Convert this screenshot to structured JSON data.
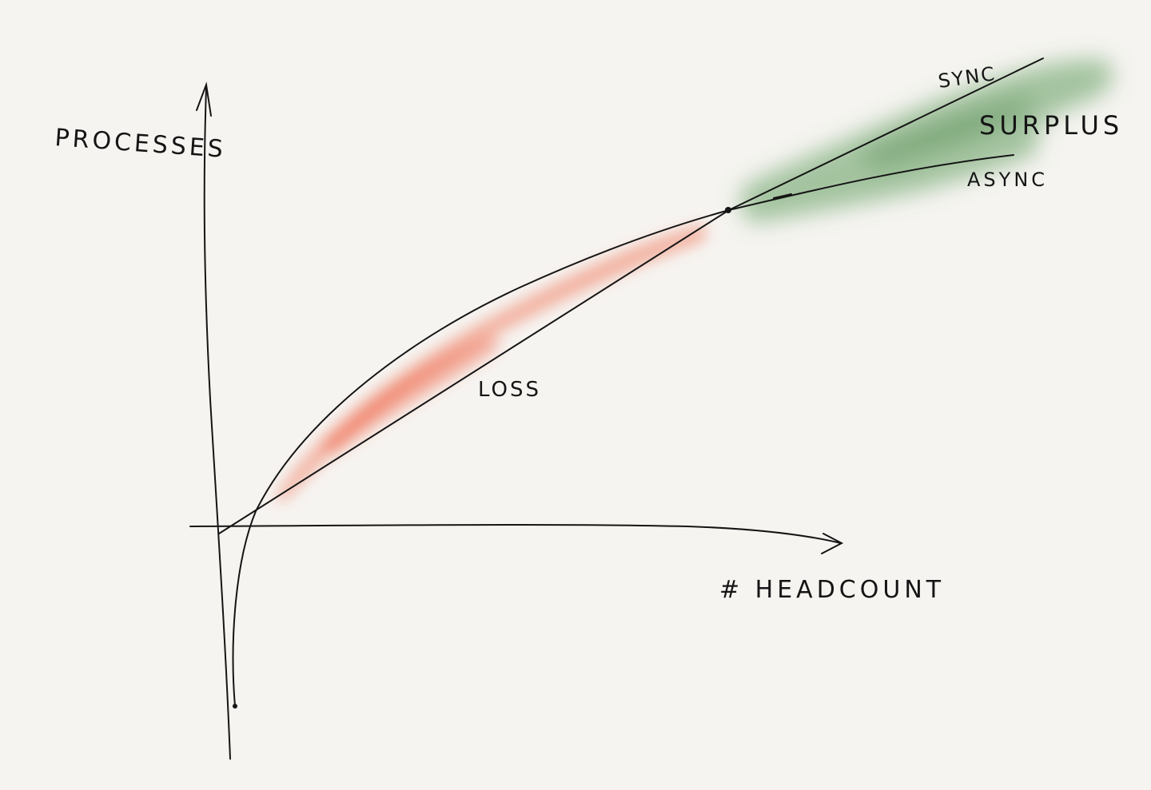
{
  "diagram": {
    "axes": {
      "y_label": "PROCESSES",
      "x_label": "# HEADCOUNT"
    },
    "curves": [
      {
        "name": "sync",
        "label": "SYNC",
        "shape": "straight line"
      },
      {
        "name": "async",
        "label": "ASYNC",
        "shape": "concave curve"
      }
    ],
    "regions": [
      {
        "name": "loss",
        "label": "LOSS",
        "color": "#f07a5c"
      },
      {
        "name": "surplus",
        "label": "SURPLUS",
        "color": "#5f9a5c"
      }
    ],
    "colors": {
      "background": "#f6f4f1",
      "ink": "#151515",
      "loss": "#f07a5c",
      "surplus": "#5f9a5c"
    }
  }
}
